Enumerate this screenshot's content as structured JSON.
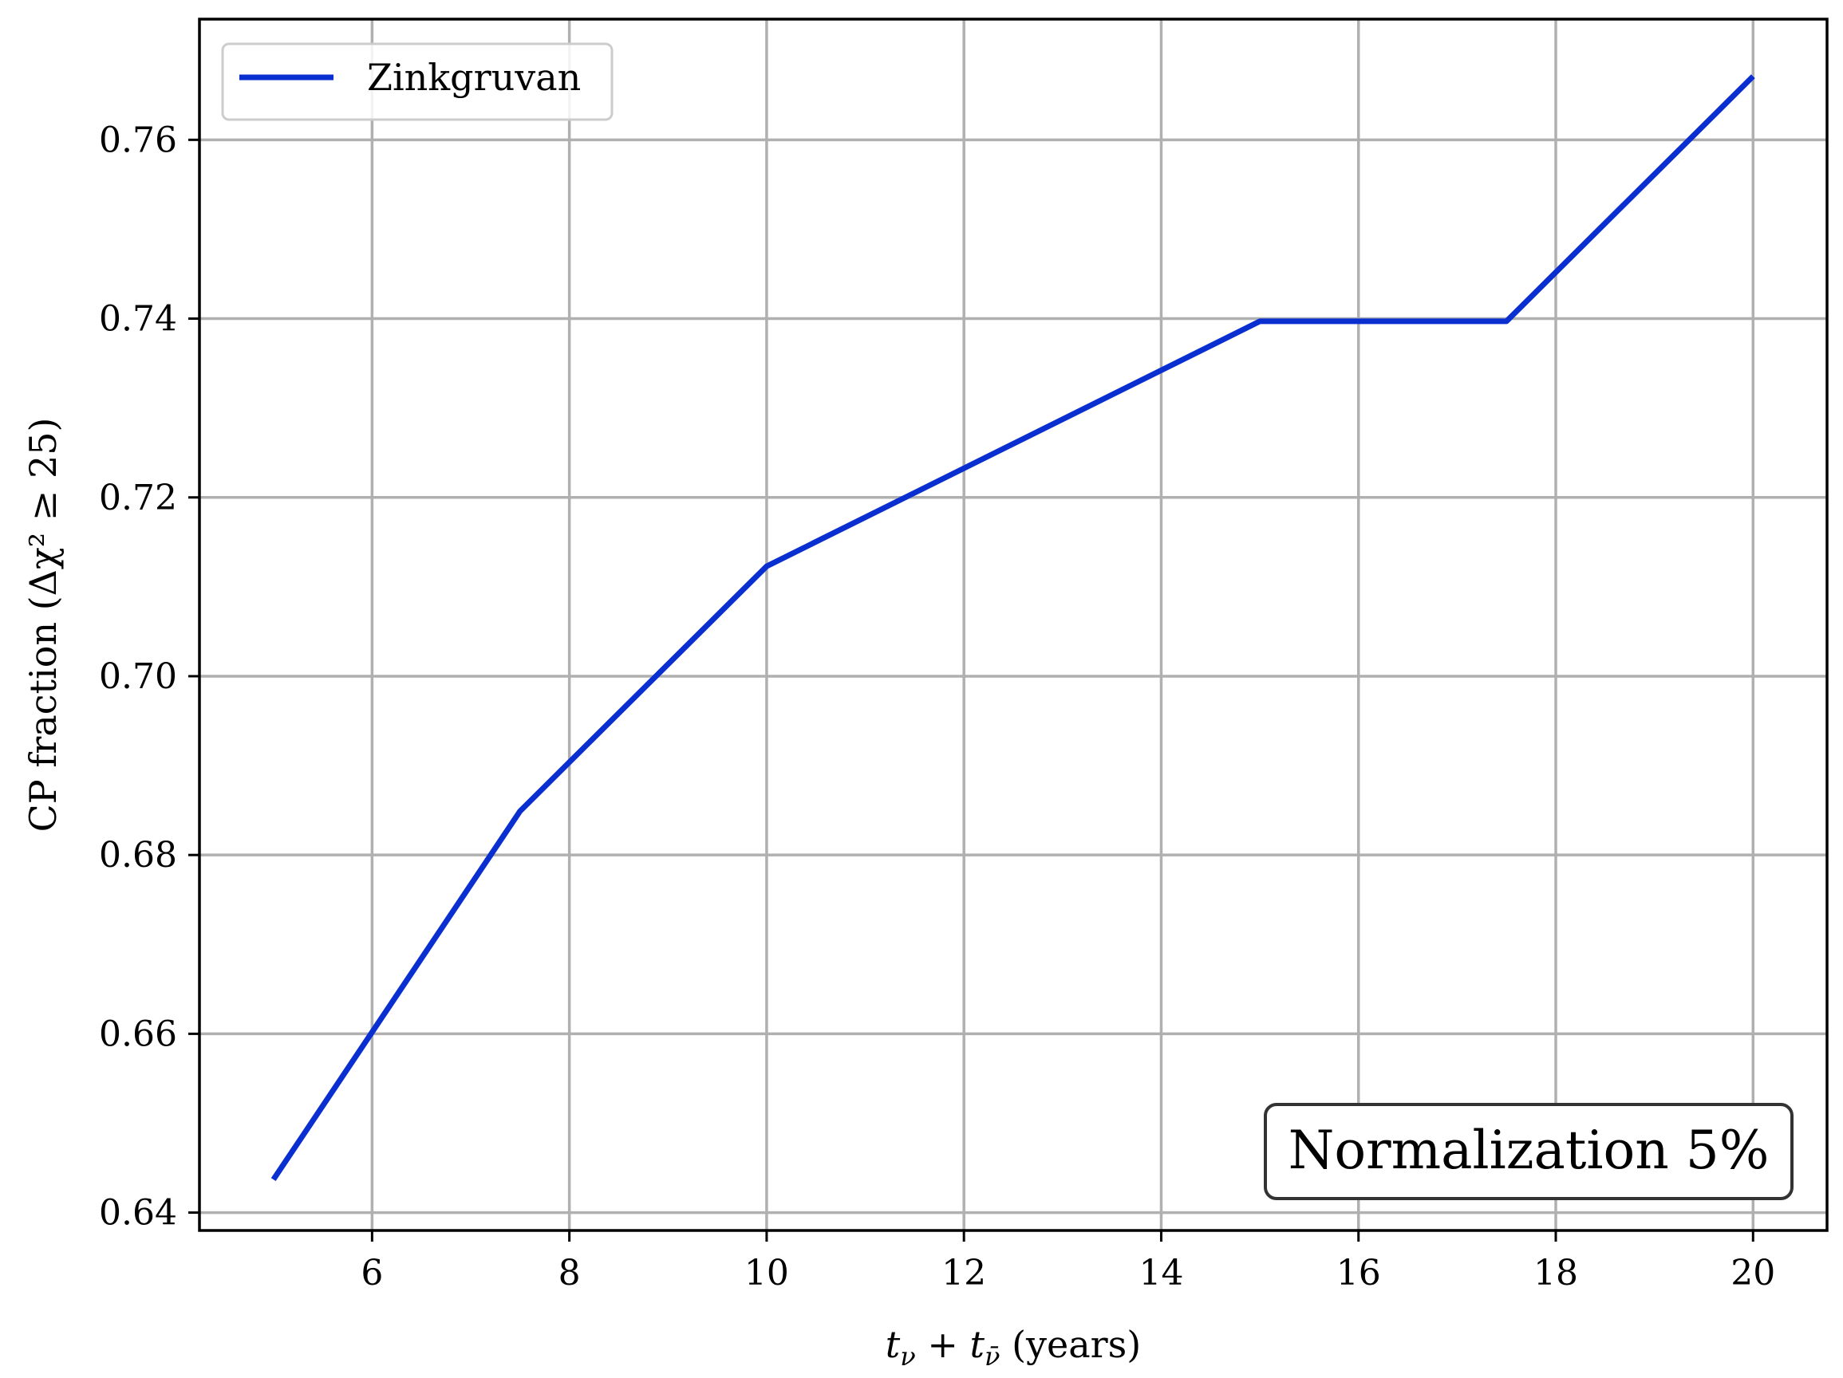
{
  "chart_data": {
    "type": "line",
    "title": "",
    "xlabel": "t_ν + t_ν̄ (years)",
    "ylabel": "CP fraction (Δχ² ≥ 25)",
    "x": [
      5,
      7.5,
      10,
      12.5,
      15,
      17.5,
      20
    ],
    "series": [
      {
        "name": "Zinkgruvan",
        "color": "#0a2fd0",
        "values": [
          0.6437,
          0.6849,
          0.7123,
          0.726,
          0.7397,
          0.7397,
          0.7671
        ]
      }
    ],
    "xlim": [
      4.25,
      20.75
    ],
    "ylim": [
      0.638,
      0.7735
    ],
    "xticks": [
      6,
      8,
      10,
      12,
      14,
      16,
      18,
      20
    ],
    "xtick_labels": [
      "6",
      "8",
      "10",
      "12",
      "14",
      "16",
      "18",
      "20"
    ],
    "yticks": [
      0.64,
      0.66,
      0.68,
      0.7,
      0.72,
      0.74,
      0.76
    ],
    "ytick_labels": [
      "0.64",
      "0.66",
      "0.68",
      "0.70",
      "0.72",
      "0.74",
      "0.76"
    ],
    "grid": true,
    "legend_position": "top-left",
    "annotation": "Normalization 5%",
    "annotation_position": "bottom-right"
  }
}
